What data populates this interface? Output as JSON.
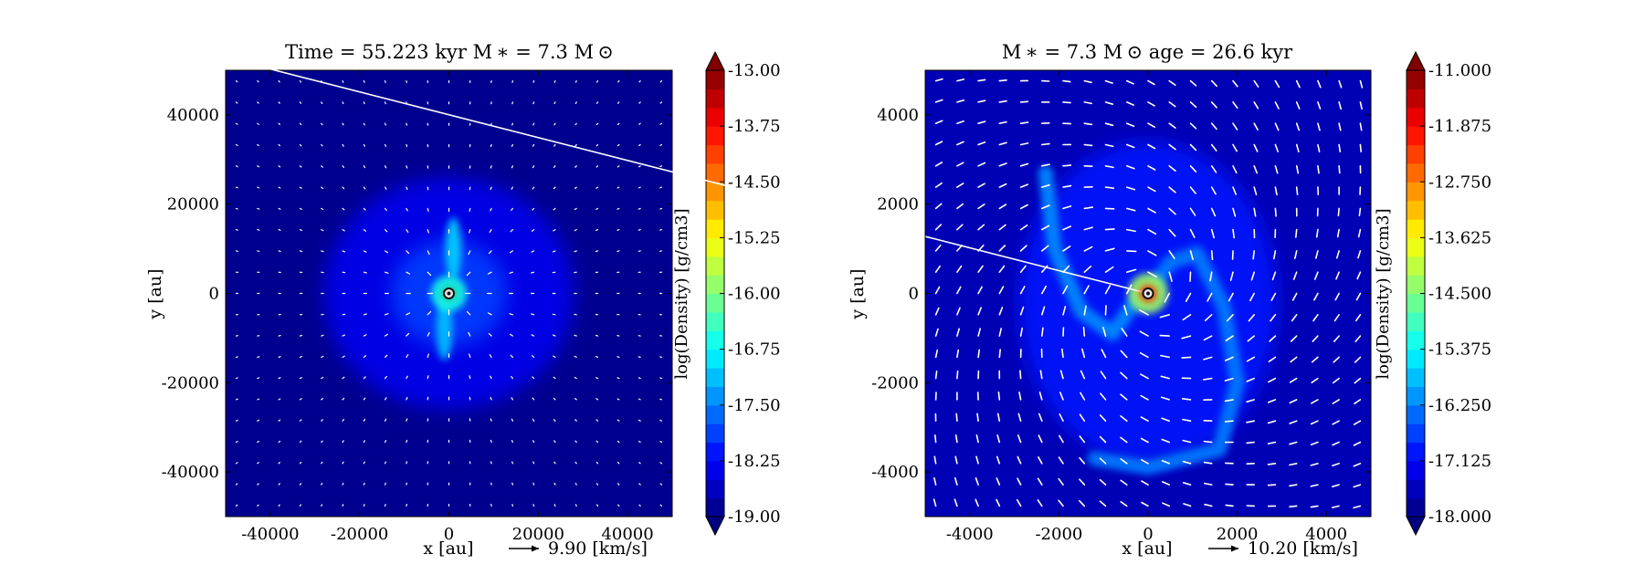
{
  "chart_data": [
    {
      "type": "heatmap",
      "title": "Time = 55.223 kyr    M ∗ = 7.3 M ⊙",
      "xlabel": "x [au]",
      "ylabel": "y [au]",
      "xlim": [
        -50000,
        50000
      ],
      "ylim": [
        -50000,
        50000
      ],
      "xticks": [
        -40000,
        -20000,
        0,
        20000,
        40000
      ],
      "yticks": [
        -40000,
        -20000,
        0,
        20000,
        40000
      ],
      "xtick_labels": [
        "-40000",
        "-20000",
        "0",
        "20000",
        "40000"
      ],
      "ytick_labels": [
        "-40000",
        "-20000",
        "0",
        "20000",
        "40000"
      ],
      "colorbar": {
        "label": "log(Density) [g/cm3]",
        "range": [
          -19.0,
          -13.0
        ],
        "ticks": [
          -13.0,
          -13.75,
          -14.5,
          -15.25,
          -16.0,
          -16.75,
          -17.5,
          -18.25,
          -19.0
        ],
        "tick_labels": [
          "-13.00",
          "-13.75",
          "-14.50",
          "-15.25",
          "-16.00",
          "-16.75",
          "-17.50",
          "-18.25",
          "-19.00"
        ],
        "colormap": "jet",
        "extend": "both"
      },
      "quiver_key": {
        "label": "9.90 [km/s]",
        "value_kms": 9.9
      },
      "grid": false,
      "structures": [
        {
          "name": "star",
          "x": 0,
          "y": 0
        },
        {
          "name": "envelope",
          "x": 0,
          "y": 0,
          "rx": 28000,
          "ry": 26000,
          "log_density": -18.35
        },
        {
          "name": "inner-envelope",
          "x": 0,
          "y": 0,
          "rx": 13000,
          "ry": 12000,
          "log_density": -17.9
        },
        {
          "name": "filament-north",
          "x": 1000,
          "y": 10000,
          "rx": 1800,
          "ry": 7000,
          "log_density": -17.0
        },
        {
          "name": "filament-south",
          "x": -1000,
          "y": -8000,
          "rx": 1800,
          "ry": 7000,
          "log_density": -17.1
        },
        {
          "name": "core",
          "x": 0,
          "y": 0,
          "rx": 4000,
          "ry": 4000,
          "log_density": -16.6
        }
      ]
    },
    {
      "type": "heatmap",
      "title": "M ∗ = 7.3 M ⊙          age = 26.6 kyr",
      "xlabel": "x [au]",
      "ylabel": "y [au]",
      "xlim": [
        -5000,
        5000
      ],
      "ylim": [
        -5000,
        5000
      ],
      "xticks": [
        -4000,
        -2000,
        0,
        2000,
        4000
      ],
      "yticks": [
        -4000,
        -2000,
        0,
        2000,
        4000
      ],
      "xtick_labels": [
        "-4000",
        "-2000",
        "0",
        "2000",
        "4000"
      ],
      "ytick_labels": [
        "-4000",
        "-2000",
        "0",
        "2000",
        "4000"
      ],
      "colorbar": {
        "label": "log(Density) [g/cm3]",
        "range": [
          -18.0,
          -11.0
        ],
        "ticks": [
          -11.0,
          -11.875,
          -12.75,
          -13.625,
          -14.5,
          -15.375,
          -16.25,
          -17.125,
          -18.0
        ],
        "tick_labels": [
          "-11.000",
          "-11.875",
          "-12.750",
          "-13.625",
          "-14.500",
          "-15.375",
          "-16.250",
          "-17.125",
          "-18.000"
        ],
        "colormap": "jet",
        "extend": "both"
      },
      "quiver_key": {
        "label": "10.20 [km/s]",
        "value_kms": 10.2
      },
      "grid": false,
      "structures": [
        {
          "name": "star",
          "x": 0,
          "y": 0
        },
        {
          "name": "spiral-envelope",
          "x": 0,
          "y": -200,
          "rx": 2900,
          "ry": 3600,
          "log_density": -17.0
        },
        {
          "name": "spiral-arm-west",
          "path": [
            [
              -2300,
              2700
            ],
            [
              -2100,
              1000
            ],
            [
              -1500,
              -400
            ],
            [
              -800,
              -900
            ],
            [
              -300,
              -200
            ],
            [
              0,
              0
            ]
          ],
          "log_density": -16.2
        },
        {
          "name": "spiral-arm-east",
          "path": [
            [
              0,
              0
            ],
            [
              500,
              700
            ],
            [
              1100,
              900
            ],
            [
              1700,
              -300
            ],
            [
              2000,
              -2000
            ],
            [
              1600,
              -3500
            ],
            [
              0,
              -3900
            ],
            [
              -1200,
              -3700
            ]
          ],
          "log_density": -16.3
        },
        {
          "name": "core",
          "x": 0,
          "y": 0,
          "rx": 450,
          "ry": 450,
          "log_density": -14.3
        }
      ]
    }
  ]
}
